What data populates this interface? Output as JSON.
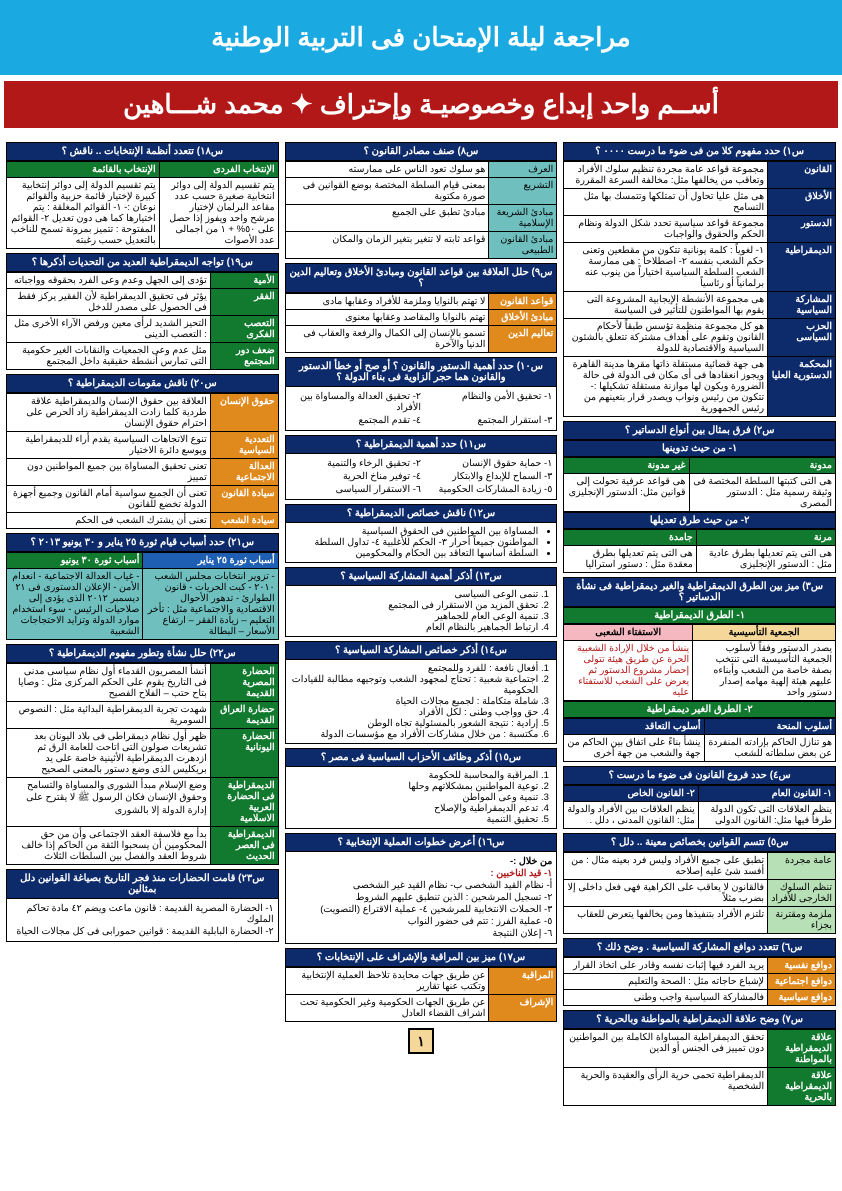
{
  "page_number": "١",
  "top_banner": "مراجعة ليلة الإمتحان فى التربية الوطنية",
  "red_banner": "أســم واحد إبداع وخصوصيـة وإحتراف ✦ محمد شـــاهين",
  "colors": {
    "top_bg": "#1ba9e1",
    "red_bg": "#b31818",
    "navy": "#0d2a6b",
    "green": "#127a2e",
    "orange": "#e08a1e",
    "teal": "#6fbfbf"
  },
  "col1": {
    "q1_title": "س١) حدد مفهوم كلا من فى ضوء ما درست ٠٠٠٠ ؟",
    "q1_rows": [
      [
        "القانون",
        "مجموعة قواعد عامة مجردة  تنظيم سلوك الأفراد وتعاقب من يخالفها مثل: مخالفة السرعة المقررة"
      ],
      [
        "الأخلاق",
        "هى مثل عليا تحاول أن تمتلكها وتتمسك بها مثل التسامح"
      ],
      [
        "الدستور",
        "مجموعة قواعد سياسية تحدد شكل الدولة ونظام الحكم والحقوق والواجبات"
      ],
      [
        "الديمقراطية",
        "١- لغوياً : كلمة يونانية تتكون من مقطعين وتعنى حكم الشعب بنفسه\n٢- اصطلاحاً : هى ممارسة الشعب السلطة السياسية اختياراً من ينوب عنه برلمانياً أو رئاسياً"
      ],
      [
        "المشاركة السياسية",
        "هى مجموعة الأنشطة الإيجابية المشروعة التى يقوم بها المواطنون للتأثير فى السياسة"
      ],
      [
        "الحزب السياسى",
        "هو كل مجموعة منظمة تؤسس طبقاً لأحكام القانون وتقوم على أهداف مشتركة تتعلق بالشئون السياسية والاقتصادية للدولة"
      ],
      [
        "المحكمة الدستورية العليا",
        "هى جهة قضائية مستقلة ذاتها مقرها مدينة القاهرة ويجوز انعقادها فى أى مكان فى الدولة فى حالة الضرورة ويكون لها موازنة مستقلة\nتشكيلها :-\nتتكون من رئيس ونواب ويصدر قرار بتعينهم من رئيس الجمهورية"
      ]
    ],
    "q2_title": "س٢) فرق بمثال بين أنواع الدساتير ؟",
    "q2_sub1": "١- من حيث تدوينها",
    "q2_h1": [
      "مدونة",
      "غير مدونة"
    ],
    "q2_r1": [
      "هى التى كتبتها السلطة المختصة فى وثيقة رسمية\nمثل : الدستور المصرى",
      "هى قواعد عرفية تحولت إلى قوانين\nمثل: الدستور الإنجليزى"
    ],
    "q2_sub2": "٢- من حيث طرق تعديلها",
    "q2_h2": [
      "مرنة",
      "جامدة"
    ],
    "q2_r2": [
      "هى التى يتم تعديلها بطرق عادية\nمثل : الدستور الإنجليزى",
      "هى التى يتم تعديلها بطرق معقدة\nمثل : دستور استراليا"
    ],
    "q3_title": "س٣) ميز بين الطرق الديمقراطية والغير ديمقراطية فى نشأة الدساتير ؟",
    "q3_sub1": "١- الطرق الديمقراطية",
    "q3_h1": [
      "الجمعية التأسيسية",
      "الاستفتاء الشعبى"
    ],
    "q3_r1": [
      "يصدر الدستور وفقاً لأسلوب الجمعية التأسيسية التى تنتخب بصفة خاصة من الشعب وأبناءه عليهم هيئة إلهية مهامه إصدار دستور واحد",
      "ينشأ من خلال الإرادة الشعبية الحرة عن طريق هيئة تتولى إحضار مشروع الدستور ثم يعرض على الشعب للاستفتاء عليه"
    ],
    "q3_sub2": "٢- الطرق الغير ديمقراطية",
    "q3_h2": [
      "أسلوب المنحة",
      "أسلوب التعاقد"
    ],
    "q3_r2": [
      "هو تنازل الحاكم بإرادته المنفردة عن بعض سلطاته للشعب",
      "ينشأ بناءً على اتفاق بين الحاكم من جهة والشعب من جهة أخرى"
    ],
    "q4_title": "س٤) حدد فروع القانون فى ضوء ما درست ؟",
    "q4_h": [
      "١- القانون العام",
      "٢- القانون الخاص"
    ],
    "q4_r": [
      "ينظم العلاقات التى تكون الدولة  طرفاً فيها مثل: القانون الدولى",
      "ينظم العلاقات بين الأفراد والدولة\nمثل: القانون المدنى ، دلل ."
    ],
    "q5_title": "س٥) تتسم القوانين بخصائص معينة .. دلل ؟",
    "q5_rows": [
      [
        "عامة مجردة",
        "تطبق على جميع الأفراد وليس فرد بعينه\nمثال : من أفسد شئ عليه إصلاحه"
      ],
      [
        "تنظم السلوك الخارجى للأفراد",
        "فالقانون لا يعاقب على الكراهية فهى فعل داخلى إلا بضرب مثلاً"
      ],
      [
        "ملزمة ومقترنة بجزاء",
        "تلتزم الأفراد بتنفيذها ومن يخالفها يتعرض للعقاب"
      ]
    ],
    "q6_title": "س٦) تتعدد دوافع المشاركة السياسية . وضح ذلك ؟",
    "q6_rows": [
      [
        "دوافع نفسية",
        "يريد الفرد فيها إثبات نفسه وقادر على اتخاذ القرار"
      ],
      [
        "دوافع اجتماعية",
        "لإشباع حاجاته مثل : الصحة والتعليم"
      ],
      [
        "دوافع سياسية",
        "فالمشاركة السياسية واجب وطنى"
      ]
    ],
    "q7_title": "س٧) وضح علاقة الديمقراطية بالمواطنة وبالحرية ؟",
    "q7_rows": [
      [
        "علاقة الديمقراطية بالمواطنة",
        "تحقق الديمقراطية المساواة الكاملة بين المواطنين دون تمييز فى الجنس أو الدين"
      ],
      [
        "علاقة الديمقراطية بالحرية",
        "الديمقراطية تحمى حرية الرأى والعقيدة والحرية الشخصية"
      ]
    ]
  },
  "col2": {
    "q8_title": "س٨) صنف مصادر القانون ؟",
    "q8_rows": [
      [
        "العرف",
        "هو سلوك تعود الناس على ممارسته"
      ],
      [
        "التشريع",
        "بمعنى قيام السلطة المختصة بوضع القوانين فى صورة مكتوبة"
      ],
      [
        "مبادئ الشريعة الإسلامية",
        "مبادئ تطبق على الجميع"
      ],
      [
        "مبادئ القانون الطبيعى",
        "قواعد ثابته لا تتغير بتغير الزمان والمكان"
      ]
    ],
    "q9_title": "س٩) حلل العلاقة بين قواعد القانون ومبادئ الأخلاق وتعاليم الدين ؟",
    "q9_rows": [
      [
        "قواعد القانون",
        "لا تهتم بالنوايا وملزمة للأفراد وعقابها مادى"
      ],
      [
        "مبادئ الأخلاق",
        "تهتم بالنوايا والمقاصد وعقابها معنوى"
      ],
      [
        "تعاليم الدين",
        "تسمو بالإنسان إلى الكمال والرفعة والعقاب فى الدنيا والآخرة"
      ]
    ],
    "q10_title": "س١٠) حدد أهمية الدستور والقانون ؟ أو صح أو خطأ الدستور والقانون هما حجر الزاوية فى بناء الدولة ؟",
    "q10_items": [
      "١- تحقيق الأمن والنظام",
      "٢- تحقيق العدالة والمساواة بين الأفراد",
      "٣- استقرار المجتمع",
      "٤- تقدم المجتمع"
    ],
    "q11_title": "س١١) حدد أهمية الديمقراطية ؟",
    "q11_items": [
      "١- حماية حقوق الإنسان",
      "٢- تحقيق الرخاء والتنمية",
      "٣- السماح للإبداع والابتكار",
      "٤- توفير مناخ الحرية",
      "٥- زيادة المشاركات الحكومية",
      "٦- الاستقرار السياسى"
    ],
    "q12_title": "س١٢) ناقش خصائص الديمقراطية ؟",
    "q12_items": [
      "المساواة بين المواطنين فى الحقوق السياسية",
      "المواطنون جميعاً أحرار ٣- الحكم للأغلبية ٤- تداول السلطة",
      "السلطة أساسها التعاقد بين الحكام والمحكومين"
    ],
    "q13_title": "س١٣) أذكر أهمية المشاركة السياسية ؟",
    "q13_items": [
      "تنمى الوعى السياسى",
      "تحقق المزيد من الاستقرار فى المجتمع",
      "تنمية الوعى العام للجماهير",
      "ارتباط الجماهير بالنظام العام"
    ],
    "q14_title": "س١٤) أذكر خصائص المشاركة السياسية ؟",
    "q14_items": [
      "أفعال نافعة : للفرد وللمجتمع",
      "اجتماعية شعبية : تحتاج لمجهود الشعب وتوجيهه مطالبة للقيادات الحكومية",
      "شاملة متكاملة : لجميع مجالات الحياة",
      "حق وواجب وطنى : لكل الأفراد",
      "إرادية : نتيجة الشعور بالمسئولية تجاه الوطن",
      "مكتسبة : من خلال مشاركات الأفراد مع مؤسسات الدولة"
    ],
    "q15_title": "س١٥) أذكر وظائف الأحزاب السياسية فى مصر ؟",
    "q15_items": [
      "المراقبة والمحاسبة للحكومة",
      "توعية المواطنين بمشكلاتهم وحلها",
      "تنمية وعى المواطن",
      "تدعم الديمقراطية والإصلاح",
      "تحقيق التنمية"
    ],
    "q16_title": "س١٦) أعرض خطوات العملية الإنتخابية ؟",
    "q16_lead": "من خلال :-",
    "q16_items": [
      "أ- نظام القيد الشخصى     ب- نظام القيد غير الشخصى",
      "٢- تسجيل المرشحين : الذين تنطبق عليهم الشروط",
      "٣- الحملات الانتخابية للمرشحين ٤- عملية الاقتراع (التصويت)",
      "٥- عملية الفرز : تتم فى حضور النواب",
      "٦- إعلان النتيجة"
    ],
    "q16_first": "١- قيد الناخبين :",
    "q17_title": "س١٧) ميز بين المراقبة والإشراف على الإنتخابات ؟",
    "q17_rows": [
      [
        "المراقبة",
        "عن طريق جهات محايدة تلاحظ العملية الإنتخابية وتكتب عنها تقارير"
      ],
      [
        "الإشراف",
        "عن طريق الجهات الحكومية وغير الحكومية تحت اشراف القضاء العادل"
      ]
    ]
  },
  "col3": {
    "q18_title": "س١٨) تتعدد أنظمة الإنتخابات .. ناقش ؟",
    "q18_h": [
      "الإنتخاب الفردى",
      "الإنتخاب بالقائمة"
    ],
    "q18_r": [
      "يتم تقسيم الدولة إلى دوائر انتخابية صغيرة حسب عدد مقاعد البرلمان لإختيار مرشح واحد ويفوز إذا حصل على ٥٠% + ١ من اجمالى عدد الأصوات",
      "يتم تقسيم الدولة إلى دوائر إنتخابية كبيرة لإختيار قائمة حزبية والقوائم نوعان :-\n١- القوائم المغلقة : يتم اختيارها كما هى دون تعديل\n٢- القوائم المفتوحة : تتميز بمرونة تسمح للناخب بالتعديل حسب رغبته"
    ],
    "q19_title": "س١٩) تواجه الديمقراطية العديد من التحديات أذكرها ؟",
    "q19_rows": [
      [
        "الأمية",
        "تؤدى إلى الجهل وعدم وعى الفرد بحقوقه وواجباته"
      ],
      [
        "الفقر",
        "يؤثر فى تحقيق الديمقراطية لأن الفقير يركز فقط فى الحصول على مصدر للدخل"
      ],
      [
        "التعصب الفكرى",
        "التحيز الشديد لرأى معين ورفض الآراء الأخرى\nمثل : التعصب الدينى"
      ],
      [
        "ضعف دور المجتمع",
        "مثل عدم وعى الجمعيات والنقابات الغير حكومية التى تمارس أنشطة حقيقية داخل المجتمع"
      ]
    ],
    "q20_title": "س٢٠) ناقش مقومات الديمقراطية ؟",
    "q20_rows": [
      [
        "حقوق الإنسان",
        "العلاقة بين حقوق الإنسان والديمقراطية علاقة طردية كلما زادت الديمقراطية زاد الحرص على احترام حقوق الإنسان"
      ],
      [
        "التعددية السياسية",
        "تنوع الاتجاهات السياسية يقدم أراء للديمقراطية ويوسع دائرة الاختيار"
      ],
      [
        "العدالة الاجتماعية",
        "تعنى تحقيق المساواة بين جميع المواطنين دون تمييز"
      ],
      [
        "سيادة القانون",
        "تعنى أن الجميع سواسية أمام القانون وجميع أجهزة الدولة تخضع للقانون"
      ],
      [
        "سيادة الشعب",
        "تعنى أن يشترك الشعب فى الحكم"
      ]
    ],
    "q21_title": "س٢١) حدد أسباب قيام ثورة ٢٥ يناير و ٣٠ يونيو ٢٠١٣ ؟",
    "q21_h": [
      "أسباب ثورة ٢٥ يناير",
      "أسباب ثورة ٣٠ يونيو"
    ],
    "q21_r": [
      "- تزوير انتخابات مجلس الشعب ٢٠١٠\n- كبت الحريات\n- قانون الطوارئ\n- تدهور الأحوال الاقتصادية والاجتماعية مثل : تأخر التعليم – زيادة الفقر – ارتفاع الأسعار – البطالة",
      "- غياب العدالة الاجتماعية\n- انعدام الأمن\n- الإعلان الدستورى فى ٢١ ديسمبر ٢٠١٢ الذى يؤدى إلى صلاحيات الرئيس\n- سوء استخدام موارد الدولة وتزايد الاحتجاجات الشعبية"
    ],
    "q22_title": "س٢٢) حلل نشأة وتطور مفهوم الديمقراطية ؟",
    "q22_rows": [
      [
        "الحضارة المصرية القديمة",
        "أنشأ المصريون القدماء أول نظام سياسى مدنى فى التاريخ يقوم على الحكم المركزى\nمثل : وصايا بتاح حتب – الفلاح الفصيح"
      ],
      [
        "حضارة العراق القديمة",
        "شهدت تجربة الديمقراطية البدائية\nمثل : النصوص السومرية"
      ],
      [
        "الحضارة اليونانية",
        "ظهر أول نظام ديمقراطى فى بلاد اليونان بعد تشريعات صولون التى اتاحت للعامة الرق ثم ازدهرت الديمقراطية الأثينية خاصة على يد بريكليس الذى وضع دستور بالمعنى الصحيح"
      ],
      [
        "الديمقراطية فى الحضارة العربية الاسلامية",
        "وضع الإسلام مبدأ الشورى والمساواة والتسامح وحقوق الإنسان فكان الرسول ﷺ لا يقترح على إدارة الدولة إلا بالشورى"
      ],
      [
        "الديمقراطية فى العصر الحديث",
        "بدأ مع فلاسفة العقد الاجتماعى وأن من حق المحكومين أن يسحبوا الثقة من الحاكم إذا خالف شروط العقد  والفصل بين السلطات الثلاث"
      ]
    ],
    "q23_title": "س٢٣) قامت الحضارات منذ فجر التاريخ بصياغة القوانين دلل بمثالين ",
    "q23_items": [
      "١- الحضارة المصرية القديمة : قانون ماعت ويضم ٤٢ مادة تحاكم الملوك",
      "٢- الحضارة البابلية القديمة  : قوانين حمورابى فى كل مجالات الحياة"
    ]
  }
}
